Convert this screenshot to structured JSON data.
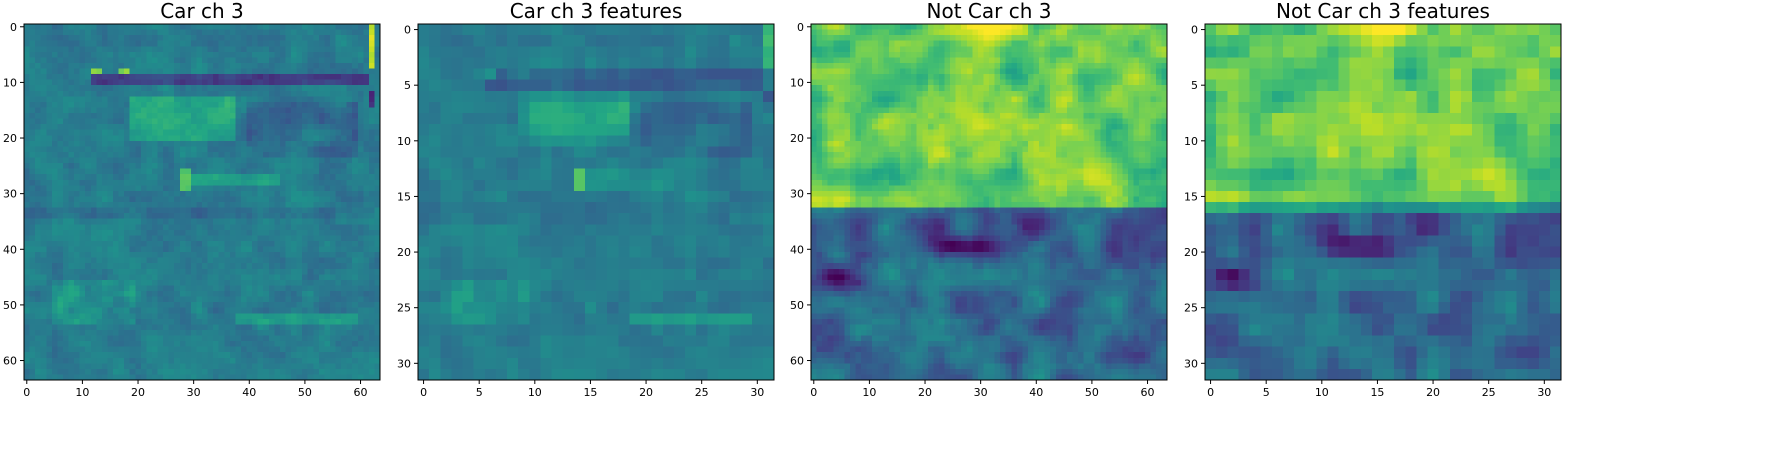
{
  "chart_data": [
    {
      "type": "heatmap",
      "title": "Car ch 3",
      "colormap": "viridis",
      "grid_shape": [
        64,
        64
      ],
      "xlim": [
        -0.5,
        63.5
      ],
      "ylim": [
        63.5,
        -0.5
      ],
      "xticks": [
        0,
        10,
        20,
        30,
        40,
        50,
        60
      ],
      "yticks": [
        0,
        10,
        20,
        30,
        40,
        50,
        60
      ]
    },
    {
      "type": "heatmap",
      "title": "Car ch 3 features",
      "colormap": "viridis",
      "grid_shape": [
        32,
        32
      ],
      "xlim": [
        -0.5,
        31.5
      ],
      "ylim": [
        31.5,
        -0.5
      ],
      "xticks": [
        0,
        5,
        10,
        15,
        20,
        25,
        30
      ],
      "yticks": [
        0,
        5,
        10,
        15,
        20,
        25,
        30
      ]
    },
    {
      "type": "heatmap",
      "title": "Not Car ch 3",
      "colormap": "viridis",
      "grid_shape": [
        64,
        64
      ],
      "xlim": [
        -0.5,
        63.5
      ],
      "ylim": [
        63.5,
        -0.5
      ],
      "xticks": [
        0,
        10,
        20,
        30,
        40,
        50,
        60
      ],
      "yticks": [
        0,
        10,
        20,
        30,
        40,
        50,
        60
      ]
    },
    {
      "type": "heatmap",
      "title": "Not Car ch 3 features",
      "colormap": "viridis",
      "grid_shape": [
        32,
        32
      ],
      "xlim": [
        -0.5,
        31.5
      ],
      "ylim": [
        31.5,
        -0.5
      ],
      "xticks": [
        0,
        5,
        10,
        15,
        20,
        25,
        30
      ],
      "yticks": [
        0,
        5,
        10,
        15,
        20,
        25,
        30
      ]
    }
  ]
}
